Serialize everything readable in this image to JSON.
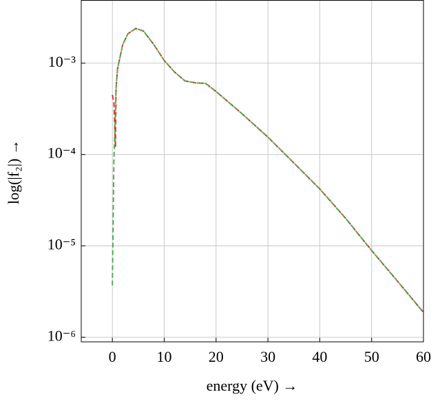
{
  "chart_data": {
    "type": "line",
    "xlabel": "energy (eV) →",
    "ylabel": "log(|f₂|) →",
    "x": [
      0,
      0.3,
      0.6,
      0.7,
      1,
      2,
      3,
      4.5,
      6,
      8,
      10,
      12,
      14,
      16,
      18,
      20,
      25,
      30,
      35,
      40,
      45,
      50,
      55,
      60
    ],
    "series": [
      {
        "color": "#e0302b",
        "values": [
          0.00045,
          0.00037,
          0.00012,
          0.00052,
          0.00087,
          0.0016,
          0.0021,
          0.0024,
          0.00225,
          0.0016,
          0.00107,
          0.0008,
          0.00064,
          0.00061,
          0.0006,
          0.00049,
          0.00028,
          0.000155,
          8.1e-05,
          4.2e-05,
          2e-05,
          8.9e-06,
          4.1e-06,
          1.87e-06
        ]
      },
      {
        "color": "#4caf50",
        "values": [
          3.7e-06,
          9e-05,
          0.0003,
          0.00052,
          0.00087,
          0.0016,
          0.0021,
          0.0024,
          0.00225,
          0.0016,
          0.00107,
          0.0008,
          0.00064,
          0.00061,
          0.0006,
          0.00049,
          0.00028,
          0.000155,
          8.1e-05,
          4.2e-05,
          2e-05,
          8.9e-06,
          4.1e-06,
          1.87e-06
        ]
      }
    ],
    "xlim": [
      -6,
      60
    ],
    "xticks": [
      0,
      10,
      20,
      30,
      40,
      50,
      60
    ],
    "ylim": [
      0.00492,
      8.9e-07
    ],
    "log_y": true,
    "yticks": [
      {
        "value": 0.001,
        "label": "10⁻³"
      },
      {
        "value": 0.0001,
        "label": "10⁻⁴"
      },
      {
        "value": 1e-05,
        "label": "10⁻⁵"
      },
      {
        "value": 1e-06,
        "label": "10⁻⁶"
      }
    ],
    "grid": true
  }
}
